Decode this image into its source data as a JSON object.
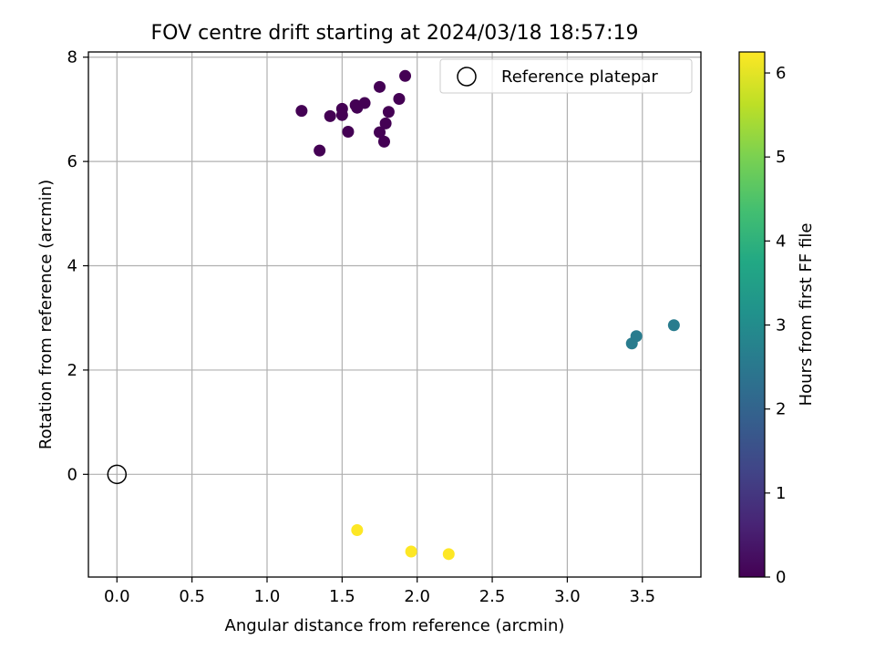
{
  "chart_data": {
    "type": "scatter",
    "title": "FOV centre drift starting at 2024/03/18 18:57:19",
    "xlabel": "Angular distance from reference (arcmin)",
    "ylabel": "Rotation from reference (arcmin)",
    "xlim": [
      -0.19,
      3.89
    ],
    "ylim": [
      -1.97,
      8.1
    ],
    "xticks": [
      0.0,
      0.5,
      1.0,
      1.5,
      2.0,
      2.5,
      3.0,
      3.5
    ],
    "xtick_labels": [
      "0.0",
      "0.5",
      "1.0",
      "1.5",
      "2.0",
      "2.5",
      "3.0",
      "3.5"
    ],
    "yticks": [
      0,
      2,
      4,
      6,
      8
    ],
    "ytick_labels": [
      "0",
      "2",
      "4",
      "6",
      "8"
    ],
    "grid": true,
    "colormap": "viridis",
    "colorbar": {
      "label": "Hours from first FF file",
      "range": [
        0,
        6.25
      ],
      "ticks": [
        0,
        1,
        2,
        3,
        4,
        5,
        6
      ],
      "tick_labels": [
        "0",
        "1",
        "2",
        "3",
        "4",
        "5",
        "6"
      ]
    },
    "legend": {
      "placement": "upper right",
      "entries": [
        {
          "label": "Reference platepar",
          "marker": "open-circle"
        }
      ]
    },
    "reference_point": {
      "x": 0.0,
      "y": 0.0
    },
    "points": [
      {
        "x": 1.23,
        "y": 6.97,
        "hours": 0.0
      },
      {
        "x": 1.35,
        "y": 6.21,
        "hours": 0.0
      },
      {
        "x": 1.42,
        "y": 6.87,
        "hours": 0.0
      },
      {
        "x": 1.5,
        "y": 7.01,
        "hours": 0.0
      },
      {
        "x": 1.5,
        "y": 6.89,
        "hours": 0.0
      },
      {
        "x": 1.54,
        "y": 6.57,
        "hours": 0.0
      },
      {
        "x": 1.59,
        "y": 7.08,
        "hours": 0.0
      },
      {
        "x": 1.6,
        "y": 7.03,
        "hours": 0.0
      },
      {
        "x": 1.65,
        "y": 7.12,
        "hours": 0.0
      },
      {
        "x": 1.75,
        "y": 7.43,
        "hours": 0.0
      },
      {
        "x": 1.75,
        "y": 6.56,
        "hours": 0.0
      },
      {
        "x": 1.78,
        "y": 6.38,
        "hours": 0.0
      },
      {
        "x": 1.79,
        "y": 6.73,
        "hours": 0.0
      },
      {
        "x": 1.81,
        "y": 6.95,
        "hours": 0.0
      },
      {
        "x": 1.88,
        "y": 7.2,
        "hours": 0.0
      },
      {
        "x": 1.92,
        "y": 7.64,
        "hours": 0.0
      },
      {
        "x": 3.43,
        "y": 2.51,
        "hours": 2.6
      },
      {
        "x": 3.46,
        "y": 2.65,
        "hours": 2.6
      },
      {
        "x": 3.71,
        "y": 2.86,
        "hours": 2.6
      },
      {
        "x": 1.6,
        "y": -1.07,
        "hours": 6.25
      },
      {
        "x": 1.96,
        "y": -1.48,
        "hours": 6.25
      },
      {
        "x": 2.21,
        "y": -1.53,
        "hours": 6.25
      }
    ],
    "colors": {
      "grid": "#b0b0b0",
      "axes": "#000000",
      "reference_marker": "#000000"
    }
  }
}
